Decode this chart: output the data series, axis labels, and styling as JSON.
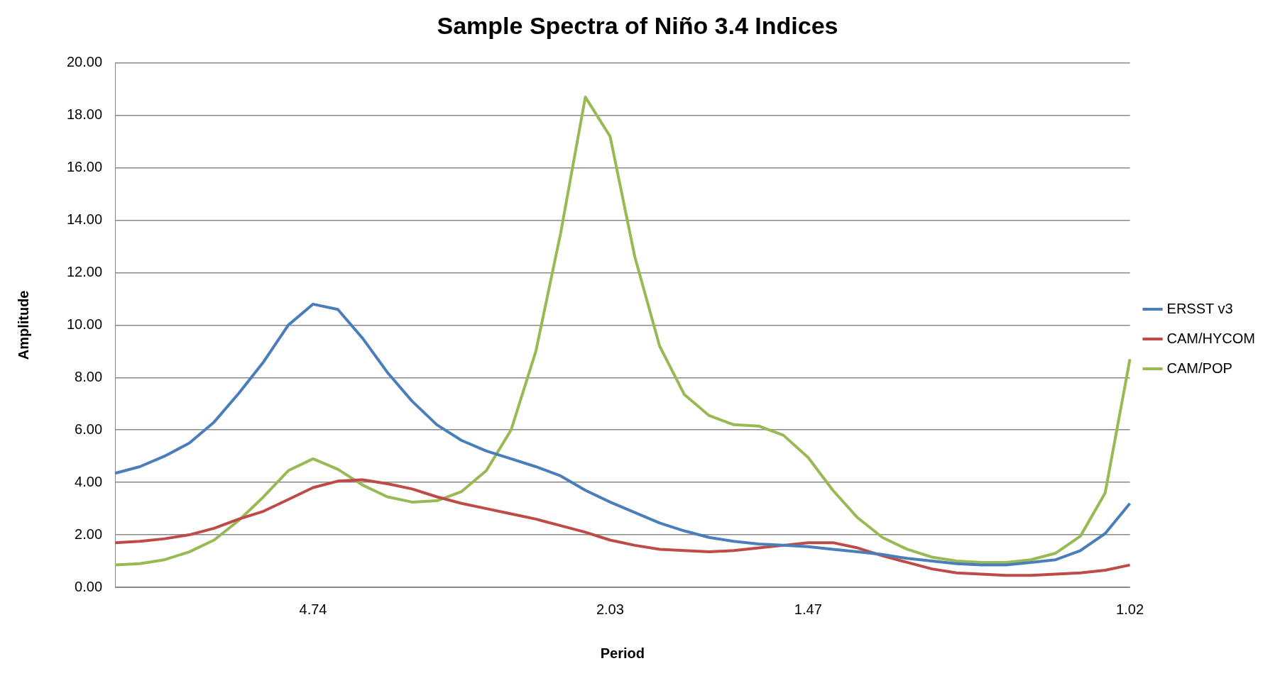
{
  "chart_data": {
    "type": "line",
    "title": "Sample Spectra of Niño 3.4 Indices",
    "xlabel": "Period",
    "ylabel": "Amplitude",
    "categories": [
      null,
      null,
      null,
      null,
      null,
      null,
      null,
      null,
      "4.74",
      null,
      null,
      null,
      null,
      null,
      null,
      null,
      null,
      null,
      null,
      null,
      "2.03",
      null,
      null,
      null,
      null,
      null,
      null,
      null,
      "1.47",
      null,
      null,
      null,
      null,
      null,
      null,
      null,
      null,
      null,
      null,
      null,
      null,
      "1.02"
    ],
    "series": [
      {
        "name": "ERSST v3",
        "color": "#4a7ebb",
        "values": [
          4.35,
          4.6,
          5.0,
          5.5,
          6.3,
          7.4,
          8.6,
          10.0,
          10.8,
          10.6,
          9.5,
          8.2,
          7.1,
          6.2,
          5.6,
          5.2,
          4.9,
          4.6,
          4.25,
          3.7,
          3.25,
          2.85,
          2.45,
          2.15,
          1.9,
          1.75,
          1.65,
          1.6,
          1.55,
          1.45,
          1.35,
          1.25,
          1.1,
          1.0,
          0.9,
          0.85,
          0.85,
          0.95,
          1.05,
          1.4,
          2.05,
          3.2
        ]
      },
      {
        "name": "CAM/HYCOM",
        "color": "#be4b48",
        "values": [
          1.7,
          1.75,
          1.85,
          2.0,
          2.25,
          2.6,
          2.9,
          3.35,
          3.8,
          4.05,
          4.1,
          3.95,
          3.75,
          3.45,
          3.2,
          3.0,
          2.8,
          2.6,
          2.35,
          2.1,
          1.8,
          1.6,
          1.45,
          1.4,
          1.35,
          1.4,
          1.5,
          1.6,
          1.7,
          1.7,
          1.5,
          1.2,
          0.95,
          0.7,
          0.55,
          0.5,
          0.45,
          0.45,
          0.5,
          0.55,
          0.65,
          0.85
        ]
      },
      {
        "name": "CAM/POP",
        "color": "#98b954",
        "values": [
          0.85,
          0.9,
          1.05,
          1.35,
          1.8,
          2.55,
          3.45,
          4.45,
          4.9,
          4.5,
          3.9,
          3.45,
          3.25,
          3.3,
          3.65,
          4.45,
          6.0,
          9.0,
          13.5,
          18.7,
          17.2,
          12.6,
          9.2,
          7.35,
          6.55,
          6.2,
          6.15,
          5.8,
          4.95,
          3.7,
          2.65,
          1.9,
          1.45,
          1.15,
          1.0,
          0.95,
          0.95,
          1.05,
          1.3,
          1.95,
          3.6,
          8.7
        ]
      }
    ],
    "ylim": [
      0,
      20
    ],
    "yticks": [
      {
        "value": 0,
        "label": "0.00"
      },
      {
        "value": 2,
        "label": "2.00"
      },
      {
        "value": 4,
        "label": "4.00"
      },
      {
        "value": 6,
        "label": "6.00"
      },
      {
        "value": 8,
        "label": "8.00"
      },
      {
        "value": 10,
        "label": "10.00"
      },
      {
        "value": 12,
        "label": "12.00"
      },
      {
        "value": 14,
        "label": "14.00"
      },
      {
        "value": 16,
        "label": "16.00"
      },
      {
        "value": 18,
        "label": "18.00"
      },
      {
        "value": 20,
        "label": "20.00"
      }
    ],
    "grid": "y",
    "legend": "right",
    "marker": "none",
    "line_style": "solid"
  }
}
